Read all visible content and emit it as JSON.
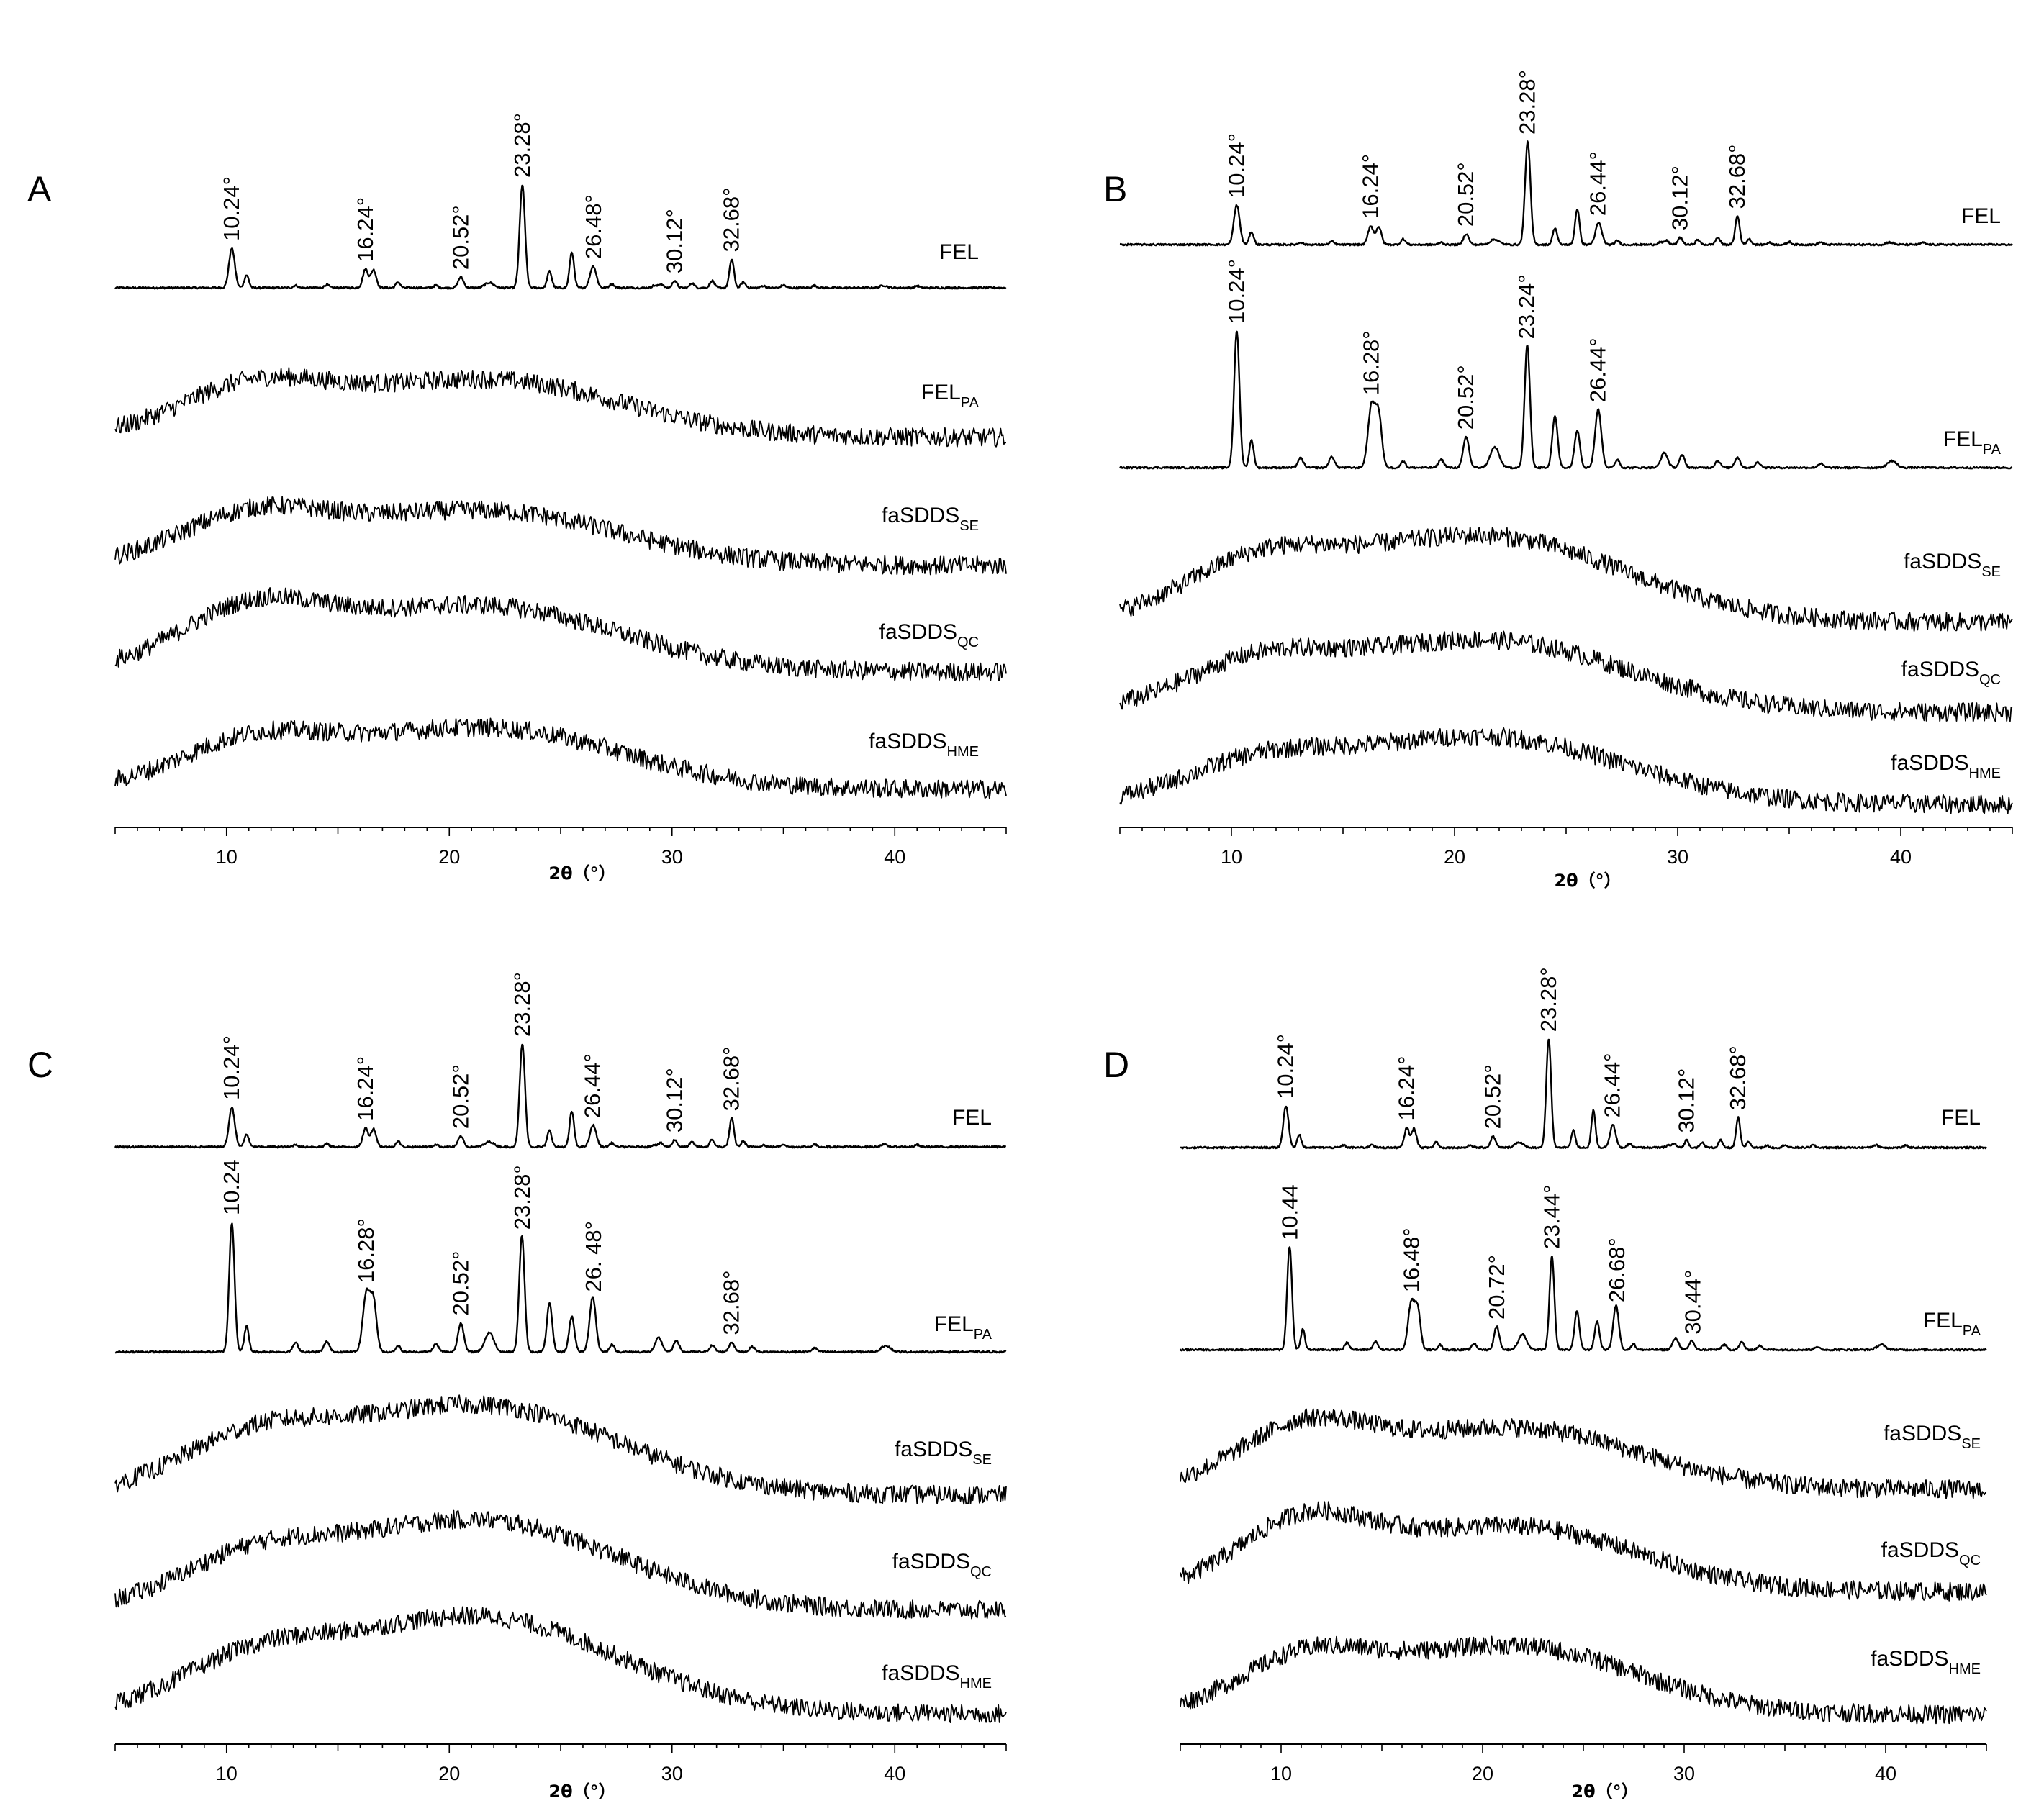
{
  "figure": {
    "panels": [
      "A",
      "B",
      "C",
      "D"
    ]
  },
  "chart_data": [
    {
      "type": "line",
      "panel": "A",
      "xlabel": "2θ（°）",
      "xlim": [
        5,
        45
      ],
      "xticks": [
        10,
        20,
        30,
        40
      ],
      "series": [
        {
          "name": "FEL",
          "sub": "",
          "pattern": "crystalline",
          "peaks": [
            10.24,
            16.24,
            20.52,
            23.28,
            26.48,
            30.12,
            32.68
          ],
          "peak_labels": [
            "10.24°",
            "16.24°",
            "20.52°",
            "23.28°",
            "26.48°",
            "30.12°",
            "32.68°"
          ]
        },
        {
          "name": "FEL",
          "sub": "PA",
          "pattern": "amorphous",
          "peaks": [],
          "peak_labels": []
        },
        {
          "name": "faSDDS",
          "sub": "SE",
          "pattern": "amorphous",
          "peaks": [],
          "peak_labels": []
        },
        {
          "name": "faSDDS",
          "sub": "QC",
          "pattern": "amorphous",
          "peaks": [],
          "peak_labels": []
        },
        {
          "name": "faSDDS",
          "sub": "HME",
          "pattern": "amorphous",
          "peaks": [],
          "peak_labels": []
        }
      ]
    },
    {
      "type": "line",
      "panel": "B",
      "xlabel": "2θ（°）",
      "xlim": [
        5,
        45
      ],
      "xticks": [
        10,
        20,
        30,
        40
      ],
      "series": [
        {
          "name": "FEL",
          "sub": "",
          "pattern": "crystalline",
          "peaks": [
            10.24,
            16.24,
            20.52,
            23.28,
            26.44,
            30.12,
            32.68
          ],
          "peak_labels": [
            "10.24°",
            "16.24°",
            "20.52°",
            "23.28°",
            "26.44°",
            "30.12°",
            "32.68°"
          ]
        },
        {
          "name": "FEL",
          "sub": "PA",
          "pattern": "crystalline",
          "peaks": [
            10.24,
            16.28,
            20.52,
            23.24,
            26.44
          ],
          "peak_labels": [
            "10.24°",
            "16.28°",
            "20.52°",
            "23.24°",
            "26.44°"
          ]
        },
        {
          "name": "faSDDS",
          "sub": "SE",
          "pattern": "amorphous",
          "peaks": [],
          "peak_labels": []
        },
        {
          "name": "faSDDS",
          "sub": "QC",
          "pattern": "amorphous",
          "peaks": [],
          "peak_labels": []
        },
        {
          "name": "faSDDS",
          "sub": "HME",
          "pattern": "amorphous",
          "peaks": [],
          "peak_labels": []
        }
      ]
    },
    {
      "type": "line",
      "panel": "C",
      "xlabel": "2θ（°）",
      "xlim": [
        5,
        45
      ],
      "xticks": [
        10,
        20,
        30,
        40
      ],
      "series": [
        {
          "name": "FEL",
          "sub": "",
          "pattern": "crystalline",
          "peaks": [
            10.24,
            16.24,
            20.52,
            23.28,
            26.44,
            30.12,
            32.68
          ],
          "peak_labels": [
            "10.24°",
            "16.24°",
            "20.52°",
            "23.28°",
            "26.44°",
            "30.12°",
            "32.68°"
          ]
        },
        {
          "name": "FEL",
          "sub": "PA",
          "pattern": "crystalline",
          "peaks": [
            10.24,
            16.28,
            20.52,
            23.28,
            26.48,
            32.68
          ],
          "peak_labels": [
            "10.24",
            "16.28°",
            "20.52°",
            "23.28°",
            "26. 48°",
            "32.68°"
          ]
        },
        {
          "name": "faSDDS",
          "sub": "SE",
          "pattern": "amorphous",
          "peaks": [],
          "peak_labels": []
        },
        {
          "name": "faSDDS",
          "sub": "QC",
          "pattern": "amorphous",
          "peaks": [],
          "peak_labels": []
        },
        {
          "name": "faSDDS",
          "sub": "HME",
          "pattern": "amorphous",
          "peaks": [],
          "peak_labels": []
        }
      ]
    },
    {
      "type": "line",
      "panel": "D",
      "xlabel": "2θ（°）",
      "xlim": [
        5,
        45
      ],
      "xticks": [
        10,
        20,
        30,
        40
      ],
      "series": [
        {
          "name": "FEL",
          "sub": "",
          "pattern": "crystalline",
          "peaks": [
            10.24,
            16.24,
            20.52,
            23.28,
            26.44,
            30.12,
            32.68
          ],
          "peak_labels": [
            "10.24°",
            "16.24°",
            "20.52°",
            "23.28°",
            "26.44°",
            "30.12°",
            "32.68°"
          ]
        },
        {
          "name": "FEL",
          "sub": "PA",
          "pattern": "crystalline",
          "peaks": [
            10.44,
            16.48,
            20.72,
            23.44,
            26.68,
            30.44
          ],
          "peak_labels": [
            "10.44",
            "16.48°",
            "20.72°",
            "23.44°",
            "26.68°",
            "30.44°"
          ]
        },
        {
          "name": "faSDDS",
          "sub": "SE",
          "pattern": "amorphous",
          "peaks": [],
          "peak_labels": []
        },
        {
          "name": "faSDDS",
          "sub": "QC",
          "pattern": "amorphous",
          "peaks": [],
          "peak_labels": []
        },
        {
          "name": "faSDDS",
          "sub": "HME",
          "pattern": "amorphous",
          "peaks": [],
          "peak_labels": []
        }
      ]
    }
  ]
}
